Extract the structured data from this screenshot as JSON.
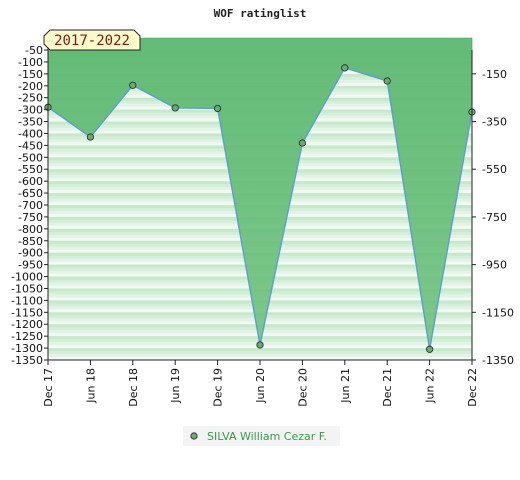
{
  "chart_data": {
    "type": "area",
    "title": "WOF ratinglist",
    "period_label": "2017-2022",
    "categories": [
      "Dec 17",
      "Jun 18",
      "Dec 18",
      "Jun 19",
      "Dec 19",
      "Jun 20",
      "Dec 20",
      "Jun 21",
      "Dec 21",
      "Jun 22",
      "Dec 22"
    ],
    "series": [
      {
        "name": "SILVA William Cezar F.",
        "values": [
          -290,
          -415,
          -198,
          -293,
          -295,
          -1287,
          -440,
          -125,
          -180,
          -1305,
          -310
        ]
      }
    ],
    "y_left": {
      "min": -1350,
      "max": -50,
      "ticks": [
        -50,
        -100,
        -150,
        -200,
        -250,
        -300,
        -350,
        -400,
        -450,
        -500,
        -550,
        -600,
        -650,
        -700,
        -750,
        -800,
        -850,
        -900,
        -950,
        -1000,
        -1050,
        -1100,
        -1150,
        -1200,
        -1250,
        -1300,
        -1350
      ]
    },
    "y_right": {
      "ticks": [
        -150,
        -350,
        -550,
        -750,
        -950,
        -1150,
        -1350
      ]
    },
    "colors": {
      "fill": "#5cb870",
      "line": "#5a9fd0",
      "marker": "#6aaa6a",
      "stripe_dark": "#c8e8cc",
      "stripe_light": "#eef8f0",
      "period_box": "#fffacc",
      "legend_bg": "#f3f3f3"
    },
    "legend_position": "bottom-center",
    "grid": "horizontal-bands"
  }
}
